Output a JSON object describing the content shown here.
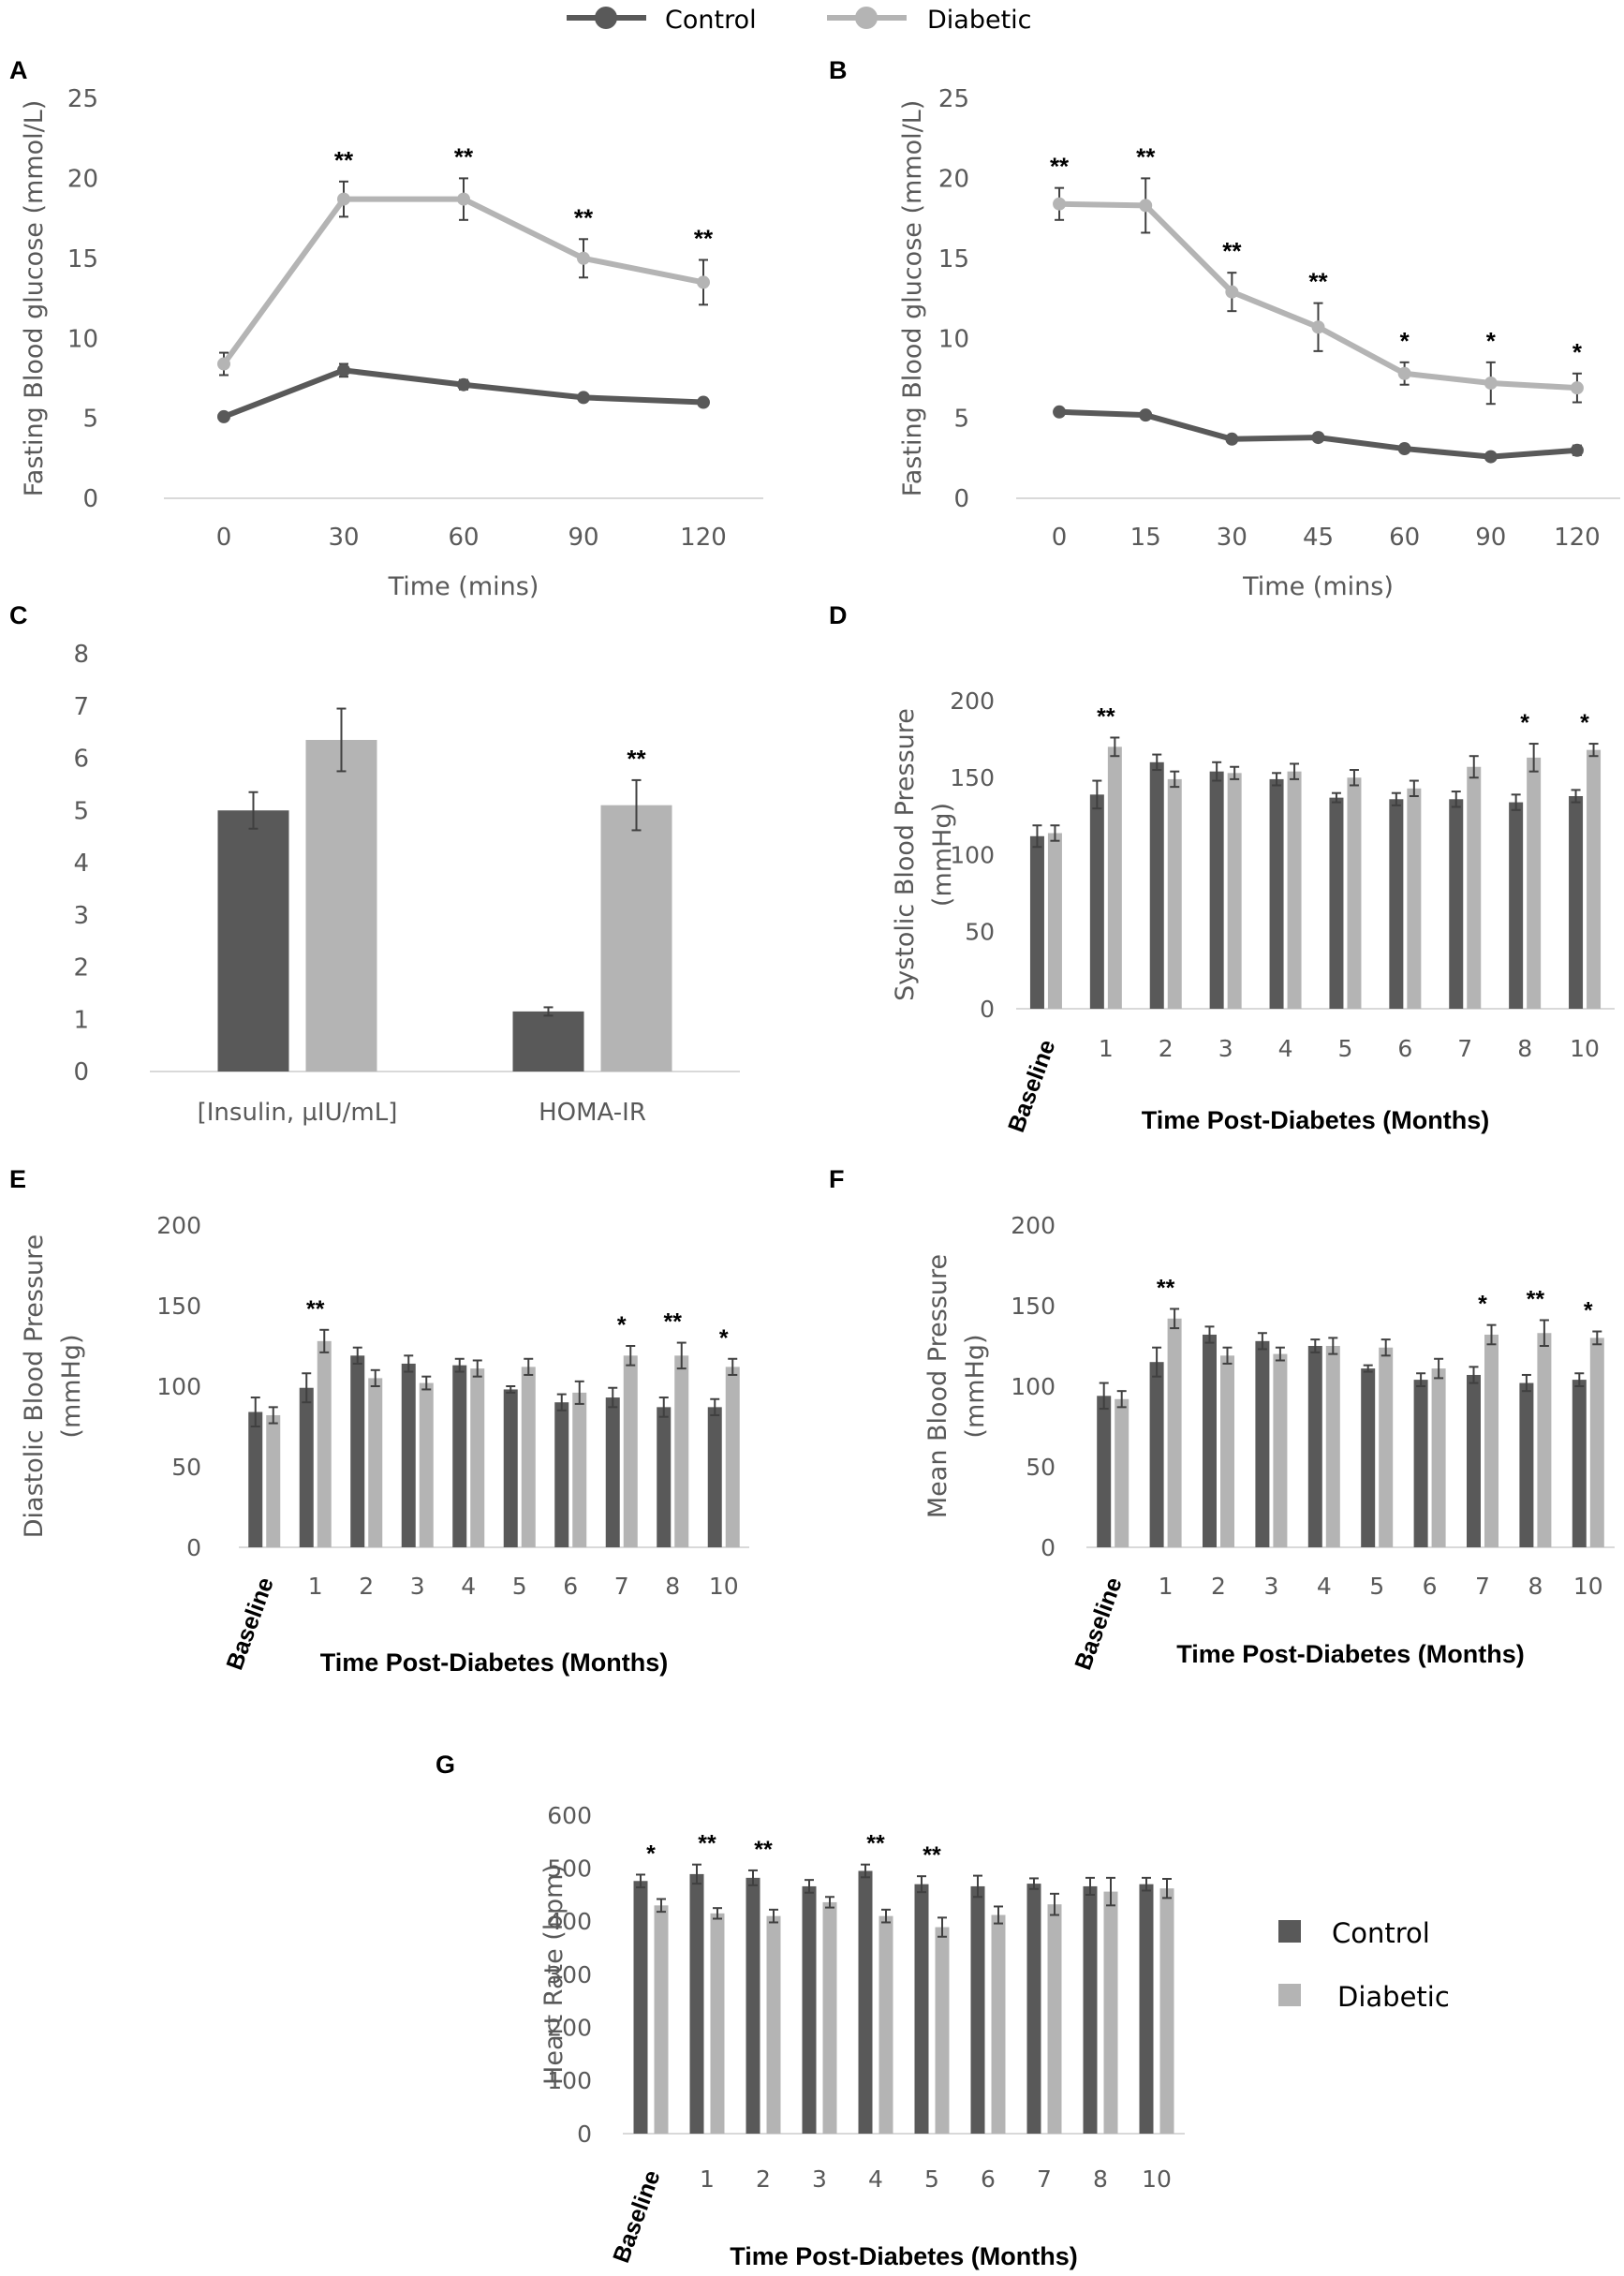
{
  "colors": {
    "control": "#595959",
    "diabetic": "#b4b4b4",
    "axis": "#d9d9d9",
    "error": "#404040"
  },
  "legend": {
    "control": "Control",
    "diabetic": "Diabetic"
  },
  "chart_data": [
    {
      "panel": "A",
      "type": "line",
      "x": [
        "0",
        "30",
        "60",
        "90",
        "120"
      ],
      "xlabel": "Time (mins)",
      "ylabel": "Fasting Blood glucose (mmol/L)",
      "yticks": [
        "0",
        "5",
        "10",
        "15",
        "20",
        "25"
      ],
      "ylim": [
        0,
        25
      ],
      "series": [
        {
          "name": "Control",
          "values": [
            5.1,
            8.0,
            7.1,
            6.3,
            6.0
          ],
          "errors": [
            0.2,
            0.4,
            0.3,
            0.2,
            0.2
          ]
        },
        {
          "name": "Diabetic",
          "values": [
            8.4,
            18.7,
            18.7,
            15.0,
            13.5
          ],
          "errors": [
            0.7,
            1.1,
            1.3,
            1.2,
            1.4
          ]
        }
      ],
      "significance": [
        "",
        "**",
        "**",
        "**",
        "**"
      ]
    },
    {
      "panel": "B",
      "type": "line",
      "x": [
        "0",
        "15",
        "30",
        "45",
        "60",
        "90",
        "120"
      ],
      "xlabel": "Time (mins)",
      "ylabel": "Fasting Blood glucose (mmol/L)",
      "yticks": [
        "0",
        "5",
        "10",
        "15",
        "20",
        "25"
      ],
      "ylim": [
        0,
        25
      ],
      "series": [
        {
          "name": "Control",
          "values": [
            5.4,
            5.2,
            3.7,
            3.8,
            3.1,
            2.6,
            3.0
          ],
          "errors": [
            0.2,
            0.2,
            0.2,
            0.2,
            0.2,
            0.2,
            0.3
          ]
        },
        {
          "name": "Diabetic",
          "values": [
            18.4,
            18.3,
            12.9,
            10.7,
            7.8,
            7.2,
            6.9
          ],
          "errors": [
            1.0,
            1.7,
            1.2,
            1.5,
            0.7,
            1.3,
            0.9
          ]
        }
      ],
      "significance": [
        "**",
        "**",
        "**",
        "**",
        "*",
        "*",
        "*"
      ]
    },
    {
      "panel": "C",
      "type": "bar",
      "categories": [
        "[Insulin, µIU/mL]",
        "HOMA-IR"
      ],
      "yticks": [
        "0",
        "1",
        "2",
        "3",
        "4",
        "5",
        "6",
        "7",
        "8"
      ],
      "ylim": [
        0,
        8
      ],
      "series": [
        {
          "name": "Control",
          "values": [
            5.0,
            1.15
          ],
          "errors": [
            0.35,
            0.08
          ]
        },
        {
          "name": "Diabetic",
          "values": [
            6.35,
            5.1
          ],
          "errors": [
            0.6,
            0.48
          ]
        }
      ],
      "significance": [
        "",
        "**"
      ]
    },
    {
      "panel": "D",
      "type": "bar",
      "categories": [
        "Baseline",
        "1",
        "2",
        "3",
        "4",
        "5",
        "6",
        "7",
        "8",
        "10"
      ],
      "xlabel": "Time Post-Diabetes (Months)",
      "ylabel": [
        "Systolic Blood Pressure",
        "(mmHg)"
      ],
      "yticks": [
        "0",
        "50",
        "100",
        "150",
        "200"
      ],
      "ylim": [
        0,
        200
      ],
      "series": [
        {
          "name": "Control",
          "values": [
            112,
            139,
            160,
            154,
            149,
            137,
            136,
            136,
            134,
            138
          ],
          "errors": [
            7,
            9,
            5,
            6,
            4,
            3,
            4,
            5,
            5,
            4
          ]
        },
        {
          "name": "Diabetic",
          "values": [
            114,
            170,
            149,
            153,
            154,
            150,
            143,
            157,
            163,
            168
          ],
          "errors": [
            5,
            6,
            5,
            4,
            5,
            5,
            5,
            7,
            9,
            4
          ]
        }
      ],
      "significance": [
        "",
        "**",
        "",
        "",
        "",
        "",
        "",
        "",
        "*",
        "*"
      ]
    },
    {
      "panel": "E",
      "type": "bar",
      "categories": [
        "Baseline",
        "1",
        "2",
        "3",
        "4",
        "5",
        "6",
        "7",
        "8",
        "10"
      ],
      "xlabel": "Time Post-Diabetes (Months)",
      "ylabel": [
        "Diastolic Blood Pressure",
        "(mmHg)"
      ],
      "yticks": [
        "0",
        "50",
        "100",
        "150",
        "200"
      ],
      "ylim": [
        0,
        200
      ],
      "series": [
        {
          "name": "Control",
          "values": [
            84,
            99,
            119,
            114,
            113,
            98,
            90,
            93,
            87,
            87
          ],
          "errors": [
            9,
            9,
            5,
            5,
            4,
            2,
            5,
            6,
            6,
            5
          ]
        },
        {
          "name": "Diabetic",
          "values": [
            82,
            128,
            105,
            102,
            111,
            112,
            96,
            119,
            119,
            112
          ],
          "errors": [
            5,
            7,
            5,
            4,
            5,
            5,
            7,
            6,
            8,
            5
          ]
        }
      ],
      "significance": [
        "",
        "**",
        "",
        "",
        "",
        "",
        "",
        "*",
        "**",
        "*"
      ]
    },
    {
      "panel": "F",
      "type": "bar",
      "categories": [
        "Baseline",
        "1",
        "2",
        "3",
        "4",
        "5",
        "6",
        "7",
        "8",
        "10"
      ],
      "xlabel": "Time Post-Diabetes (Months)",
      "ylabel": [
        "Mean Blood Pressure",
        "(mmHg)"
      ],
      "yticks": [
        "0",
        "50",
        "100",
        "150",
        "200"
      ],
      "ylim": [
        0,
        200
      ],
      "series": [
        {
          "name": "Control",
          "values": [
            94,
            115,
            132,
            128,
            125,
            111,
            104,
            107,
            102,
            104
          ],
          "errors": [
            8,
            9,
            5,
            5,
            4,
            2,
            4,
            5,
            5,
            4
          ]
        },
        {
          "name": "Diabetic",
          "values": [
            92,
            142,
            119,
            120,
            125,
            124,
            111,
            132,
            133,
            130
          ],
          "errors": [
            5,
            6,
            5,
            4,
            5,
            5,
            6,
            6,
            8,
            4
          ]
        }
      ],
      "significance": [
        "",
        "**",
        "",
        "",
        "",
        "",
        "",
        "*",
        "**",
        "*"
      ]
    },
    {
      "panel": "G",
      "type": "bar",
      "categories": [
        "Baseline",
        "1",
        "2",
        "3",
        "4",
        "5",
        "6",
        "7",
        "8",
        "10"
      ],
      "xlabel": "Time Post-Diabetes (Months)",
      "ylabel": [
        "Heart Rate (bpm)"
      ],
      "yticks": [
        "0",
        "100",
        "200",
        "300",
        "400",
        "500",
        "600"
      ],
      "ylim": [
        0,
        600
      ],
      "series": [
        {
          "name": "Control",
          "values": [
            476,
            489,
            482,
            466,
            495,
            470,
            466,
            471,
            466,
            470
          ],
          "errors": [
            12,
            18,
            14,
            12,
            12,
            15,
            20,
            10,
            16,
            12
          ]
        },
        {
          "name": "Diabetic",
          "values": [
            430,
            415,
            410,
            436,
            410,
            389,
            412,
            432,
            456,
            462
          ],
          "errors": [
            12,
            10,
            12,
            10,
            12,
            18,
            16,
            20,
            26,
            18
          ]
        }
      ],
      "significance": [
        "*",
        "**",
        "**",
        "",
        "**",
        "**",
        "",
        "",
        "",
        ""
      ]
    }
  ]
}
